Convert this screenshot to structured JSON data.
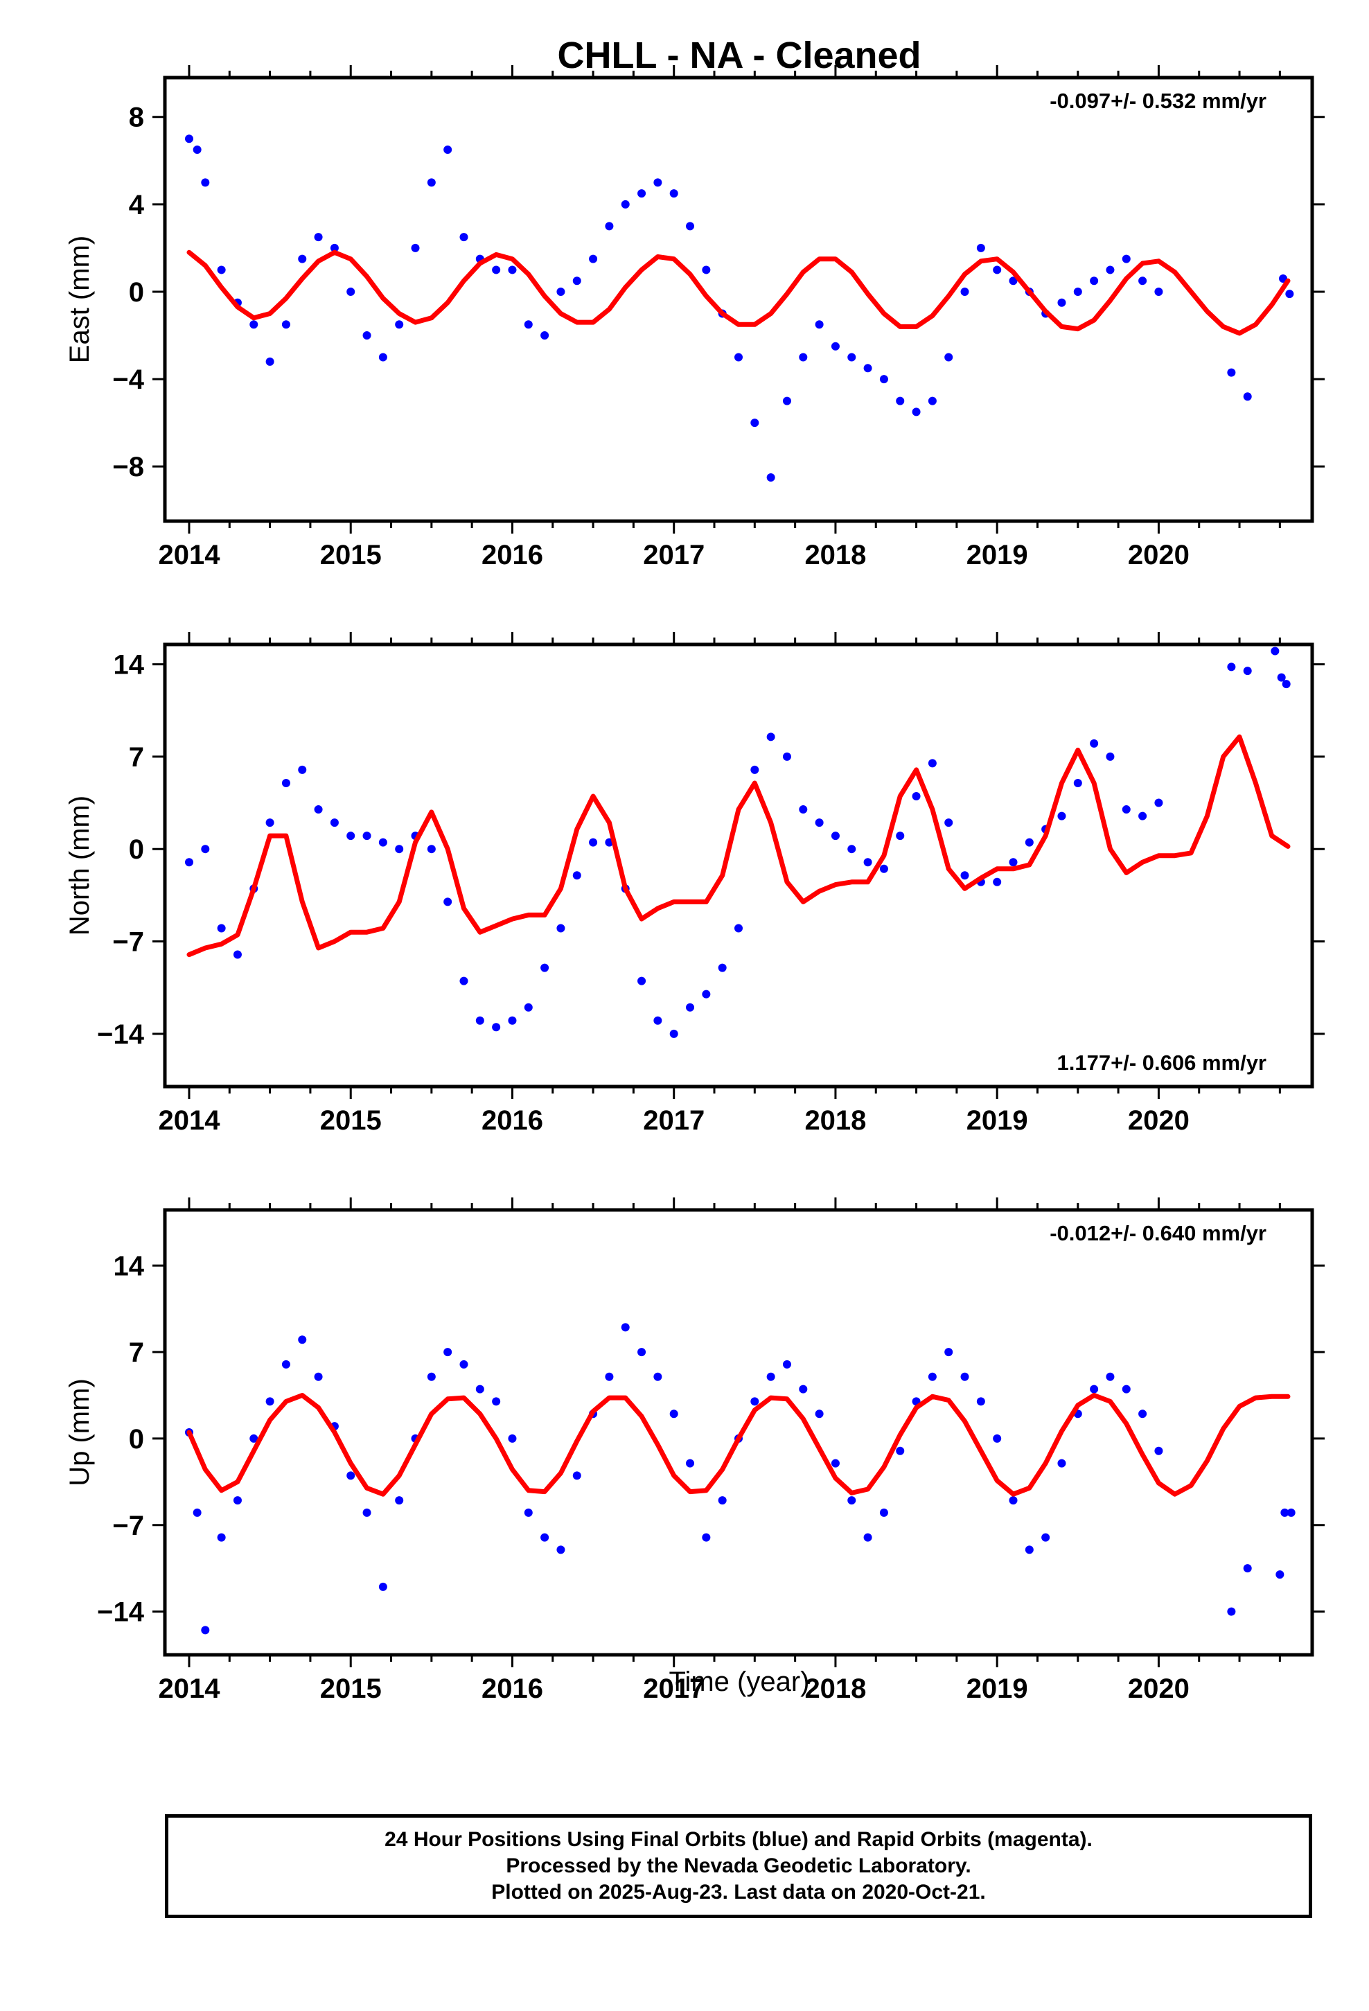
{
  "figure": {
    "title": "CHLL  - NA - Cleaned",
    "xlabel": "Time (year)"
  },
  "footer": {
    "line1": "24 Hour Positions Using Final Orbits (blue) and Rapid Orbits (magenta).",
    "line2": "Processed by the Nevada Geodetic Laboratory.",
    "line3": "Plotted on 2025-Aug-23. Last data on 2020-Oct-21."
  },
  "colors": {
    "data": "#0000ff",
    "model": "#ff0000",
    "axes": "#000000"
  },
  "chart_data": [
    {
      "type": "scatter",
      "name": "east",
      "ylabel": "East (mm)",
      "rate": "-0.097+/- 0.532 mm/yr",
      "xlim": [
        2013.85,
        2020.95
      ],
      "ylim": [
        -10.5,
        9.8
      ],
      "yticks": [
        -8,
        -4,
        0,
        4,
        8
      ],
      "xticks": [
        2014,
        2015,
        2016,
        2017,
        2018,
        2019,
        2020
      ],
      "rate_position": "top-right",
      "series": [
        {
          "name": "",
          "style": "points",
          "x": [
            2014.0,
            2014.05,
            2014.1,
            2014.2,
            2014.3,
            2014.4,
            2014.5,
            2014.6,
            2014.7,
            2014.8,
            2014.9,
            2015.0,
            2015.1,
            2015.2,
            2015.3,
            2015.4,
            2015.5,
            2015.6,
            2015.7,
            2015.8,
            2015.9,
            2016.0,
            2016.1,
            2016.2,
            2016.3,
            2016.4,
            2016.5,
            2016.6,
            2016.7,
            2016.8,
            2016.9,
            2017.0,
            2017.1,
            2017.2,
            2017.3,
            2017.4,
            2017.5,
            2017.6,
            2017.7,
            2017.8,
            2017.9,
            2018.0,
            2018.1,
            2018.2,
            2018.3,
            2018.4,
            2018.5,
            2018.6,
            2018.7,
            2018.8,
            2018.9,
            2019.0,
            2019.1,
            2019.2,
            2019.3,
            2019.4,
            2019.5,
            2019.6,
            2019.7,
            2019.8,
            2019.9,
            2020.0,
            2020.45,
            2020.55,
            2020.77,
            2020.81
          ],
          "y": [
            7.0,
            6.5,
            5.0,
            1.0,
            -0.5,
            -1.5,
            -3.2,
            -1.5,
            1.5,
            2.5,
            2.0,
            0.0,
            -2.0,
            -3.0,
            -1.5,
            2.0,
            5.0,
            6.5,
            2.5,
            1.5,
            1.0,
            1.0,
            -1.5,
            -2.0,
            0.0,
            0.5,
            1.5,
            3.0,
            4.0,
            4.5,
            5.0,
            4.5,
            3.0,
            1.0,
            -1.0,
            -3.0,
            -6.0,
            -8.5,
            -5.0,
            -3.0,
            -1.5,
            -2.5,
            -3.0,
            -3.5,
            -4.0,
            -5.0,
            -5.5,
            -5.0,
            -3.0,
            0.0,
            2.0,
            1.0,
            0.5,
            0.0,
            -1.0,
            -0.5,
            0.0,
            0.5,
            1.0,
            1.5,
            0.5,
            0.0,
            -3.7,
            -4.8,
            0.6,
            -0.1
          ]
        },
        {
          "name": "",
          "style": "line",
          "x": [
            2014.0,
            2014.1,
            2014.2,
            2014.3,
            2014.4,
            2014.5,
            2014.6,
            2014.7,
            2014.8,
            2014.9,
            2015.0,
            2015.1,
            2015.2,
            2015.3,
            2015.4,
            2015.5,
            2015.6,
            2015.7,
            2015.8,
            2015.9,
            2016.0,
            2016.1,
            2016.2,
            2016.3,
            2016.4,
            2016.5,
            2016.6,
            2016.7,
            2016.8,
            2016.9,
            2017.0,
            2017.1,
            2017.2,
            2017.3,
            2017.4,
            2017.5,
            2017.6,
            2017.7,
            2017.8,
            2017.9,
            2018.0,
            2018.1,
            2018.2,
            2018.3,
            2018.4,
            2018.5,
            2018.6,
            2018.7,
            2018.8,
            2018.9,
            2019.0,
            2019.1,
            2019.2,
            2019.3,
            2019.4,
            2019.5,
            2019.6,
            2019.7,
            2019.8,
            2019.9,
            2020.0,
            2020.1,
            2020.2,
            2020.3,
            2020.4,
            2020.5,
            2020.6,
            2020.7,
            2020.8
          ],
          "y": [
            1.8,
            1.2,
            0.2,
            -0.7,
            -1.2,
            -1.0,
            -0.3,
            0.6,
            1.4,
            1.8,
            1.5,
            0.7,
            -0.3,
            -1.0,
            -1.4,
            -1.2,
            -0.5,
            0.5,
            1.3,
            1.7,
            1.5,
            0.8,
            -0.2,
            -1.0,
            -1.4,
            -1.4,
            -0.8,
            0.2,
            1.0,
            1.6,
            1.5,
            0.8,
            -0.2,
            -1.0,
            -1.5,
            -1.5,
            -1.0,
            -0.1,
            0.9,
            1.5,
            1.5,
            0.9,
            -0.1,
            -1.0,
            -1.6,
            -1.6,
            -1.1,
            -0.2,
            0.8,
            1.4,
            1.5,
            0.9,
            0.0,
            -0.9,
            -1.6,
            -1.7,
            -1.3,
            -0.4,
            0.6,
            1.3,
            1.4,
            0.9,
            0.0,
            -0.9,
            -1.6,
            -1.9,
            -1.5,
            -0.6,
            0.5
          ]
        }
      ]
    },
    {
      "type": "scatter",
      "name": "north",
      "ylabel": "North (mm)",
      "rate": "1.177+/- 0.606 mm/yr",
      "xlim": [
        2013.85,
        2020.95
      ],
      "ylim": [
        -18.0,
        15.5
      ],
      "yticks": [
        -14,
        -7,
        0,
        7,
        14
      ],
      "xticks": [
        2014,
        2015,
        2016,
        2017,
        2018,
        2019,
        2020
      ],
      "rate_position": "bottom-right",
      "series": [
        {
          "name": "",
          "style": "points",
          "x": [
            2014.0,
            2014.1,
            2014.2,
            2014.3,
            2014.4,
            2014.5,
            2014.6,
            2014.7,
            2014.8,
            2014.9,
            2015.0,
            2015.1,
            2015.2,
            2015.3,
            2015.4,
            2015.5,
            2015.6,
            2015.7,
            2015.8,
            2015.9,
            2016.0,
            2016.1,
            2016.2,
            2016.3,
            2016.4,
            2016.5,
            2016.6,
            2016.7,
            2016.8,
            2016.9,
            2017.0,
            2017.1,
            2017.2,
            2017.3,
            2017.4,
            2017.5,
            2017.6,
            2017.7,
            2017.8,
            2017.9,
            2018.0,
            2018.1,
            2018.2,
            2018.3,
            2018.4,
            2018.5,
            2018.6,
            2018.7,
            2018.8,
            2018.9,
            2019.0,
            2019.1,
            2019.2,
            2019.3,
            2019.4,
            2019.5,
            2019.6,
            2019.7,
            2019.8,
            2019.9,
            2020.0,
            2020.45,
            2020.55,
            2020.72,
            2020.76,
            2020.79
          ],
          "y": [
            -1.0,
            0.0,
            -6.0,
            -8.0,
            -3.0,
            2.0,
            5.0,
            6.0,
            3.0,
            2.0,
            1.0,
            1.0,
            0.5,
            0.0,
            1.0,
            0.0,
            -4.0,
            -10.0,
            -13.0,
            -13.5,
            -13.0,
            -12.0,
            -9.0,
            -6.0,
            -2.0,
            0.5,
            0.5,
            -3.0,
            -10.0,
            -13.0,
            -14.0,
            -12.0,
            -11.0,
            -9.0,
            -6.0,
            6.0,
            8.5,
            7.0,
            3.0,
            2.0,
            1.0,
            0.0,
            -1.0,
            -1.5,
            1.0,
            4.0,
            6.5,
            2.0,
            -2.0,
            -2.5,
            -2.5,
            -1.0,
            0.5,
            1.5,
            2.5,
            5.0,
            8.0,
            7.0,
            3.0,
            2.5,
            3.5,
            13.8,
            13.5,
            15.0,
            13.0,
            12.5
          ]
        },
        {
          "name": "",
          "style": "line",
          "x": [
            2014.0,
            2014.1,
            2014.2,
            2014.3,
            2014.4,
            2014.5,
            2014.6,
            2014.7,
            2014.8,
            2014.9,
            2015.0,
            2015.1,
            2015.2,
            2015.3,
            2015.4,
            2015.5,
            2015.6,
            2015.7,
            2015.8,
            2015.9,
            2016.0,
            2016.1,
            2016.2,
            2016.3,
            2016.4,
            2016.5,
            2016.6,
            2016.7,
            2016.8,
            2016.9,
            2017.0,
            2017.1,
            2017.2,
            2017.3,
            2017.4,
            2017.5,
            2017.6,
            2017.7,
            2017.8,
            2017.9,
            2018.0,
            2018.1,
            2018.2,
            2018.3,
            2018.4,
            2018.5,
            2018.6,
            2018.7,
            2018.8,
            2018.9,
            2019.0,
            2019.1,
            2019.2,
            2019.3,
            2019.4,
            2019.5,
            2019.6,
            2019.7,
            2019.8,
            2019.9,
            2020.0,
            2020.1,
            2020.2,
            2020.3,
            2020.4,
            2020.5,
            2020.6,
            2020.7,
            2020.8
          ],
          "y": [
            -8.0,
            -7.5,
            -7.2,
            -6.5,
            -3.0,
            1.0,
            1.0,
            -4.0,
            -7.5,
            -7.0,
            -6.3,
            -6.3,
            -6.0,
            -4.0,
            0.5,
            2.8,
            0.0,
            -4.5,
            -6.3,
            -5.8,
            -5.3,
            -5.0,
            -5.0,
            -3.0,
            1.5,
            4.0,
            2.0,
            -3.0,
            -5.3,
            -4.5,
            -4.0,
            -4.0,
            -4.0,
            -2.0,
            3.0,
            5.0,
            2.0,
            -2.5,
            -4.0,
            -3.2,
            -2.7,
            -2.5,
            -2.5,
            -0.5,
            4.0,
            6.0,
            3.0,
            -1.5,
            -3.0,
            -2.2,
            -1.5,
            -1.5,
            -1.2,
            1.0,
            5.0,
            7.5,
            5.0,
            0.0,
            -1.8,
            -1.0,
            -0.5,
            -0.5,
            -0.3,
            2.5,
            7.0,
            8.5,
            5.0,
            1.0,
            0.2
          ]
        }
      ]
    },
    {
      "type": "scatter",
      "name": "up",
      "ylabel": "Up (mm)",
      "rate": "-0.012+/- 0.640 mm/yr",
      "xlim": [
        2013.85,
        2020.95
      ],
      "ylim": [
        -17.5,
        18.5
      ],
      "yticks": [
        -14,
        -7,
        0,
        7,
        14
      ],
      "xticks": [
        2014,
        2015,
        2016,
        2017,
        2018,
        2019,
        2020
      ],
      "rate_position": "top-right",
      "series": [
        {
          "name": "",
          "style": "points",
          "x": [
            2014.0,
            2014.05,
            2014.1,
            2014.2,
            2014.3,
            2014.4,
            2014.5,
            2014.6,
            2014.7,
            2014.8,
            2014.9,
            2015.0,
            2015.1,
            2015.2,
            2015.3,
            2015.4,
            2015.5,
            2015.6,
            2015.7,
            2015.8,
            2015.9,
            2016.0,
            2016.1,
            2016.2,
            2016.3,
            2016.4,
            2016.5,
            2016.6,
            2016.7,
            2016.8,
            2016.9,
            2017.0,
            2017.1,
            2017.2,
            2017.3,
            2017.4,
            2017.5,
            2017.6,
            2017.7,
            2017.8,
            2017.9,
            2018.0,
            2018.1,
            2018.2,
            2018.3,
            2018.4,
            2018.5,
            2018.6,
            2018.7,
            2018.8,
            2018.9,
            2019.0,
            2019.1,
            2019.2,
            2019.3,
            2019.4,
            2019.5,
            2019.6,
            2019.7,
            2019.8,
            2019.9,
            2020.0,
            2020.45,
            2020.55,
            2020.75,
            2020.78,
            2020.82
          ],
          "y": [
            0.5,
            -6.0,
            -15.5,
            -8.0,
            -5.0,
            0.0,
            3.0,
            6.0,
            8.0,
            5.0,
            1.0,
            -3.0,
            -6.0,
            -12.0,
            -5.0,
            0.0,
            5.0,
            7.0,
            6.0,
            4.0,
            3.0,
            0.0,
            -6.0,
            -8.0,
            -9.0,
            -3.0,
            2.0,
            5.0,
            9.0,
            7.0,
            5.0,
            2.0,
            -2.0,
            -8.0,
            -5.0,
            0.0,
            3.0,
            5.0,
            6.0,
            4.0,
            2.0,
            -2.0,
            -5.0,
            -8.0,
            -6.0,
            -1.0,
            3.0,
            5.0,
            7.0,
            5.0,
            3.0,
            0.0,
            -5.0,
            -9.0,
            -8.0,
            -2.0,
            2.0,
            4.0,
            5.0,
            4.0,
            2.0,
            -1.0,
            -14.0,
            -10.5,
            -11.0,
            -6.0,
            -6.0
          ]
        },
        {
          "name": "",
          "style": "line",
          "x": [
            2014.0,
            2014.1,
            2014.2,
            2014.3,
            2014.4,
            2014.5,
            2014.6,
            2014.7,
            2014.8,
            2014.9,
            2015.0,
            2015.1,
            2015.2,
            2015.3,
            2015.4,
            2015.5,
            2015.6,
            2015.7,
            2015.8,
            2015.9,
            2016.0,
            2016.1,
            2016.2,
            2016.3,
            2016.4,
            2016.5,
            2016.6,
            2016.7,
            2016.8,
            2016.9,
            2017.0,
            2017.1,
            2017.2,
            2017.3,
            2017.4,
            2017.5,
            2017.6,
            2017.7,
            2017.8,
            2017.9,
            2018.0,
            2018.1,
            2018.2,
            2018.3,
            2018.4,
            2018.5,
            2018.6,
            2018.7,
            2018.8,
            2018.9,
            2019.0,
            2019.1,
            2019.2,
            2019.3,
            2019.4,
            2019.5,
            2019.6,
            2019.7,
            2019.8,
            2019.9,
            2020.0,
            2020.1,
            2020.2,
            2020.3,
            2020.4,
            2020.5,
            2020.6,
            2020.7,
            2020.8
          ],
          "y": [
            0.5,
            -2.5,
            -4.2,
            -3.5,
            -1.0,
            1.5,
            3.0,
            3.5,
            2.5,
            0.5,
            -2.0,
            -4.0,
            -4.5,
            -3.0,
            -0.5,
            2.0,
            3.2,
            3.3,
            2.0,
            0.0,
            -2.5,
            -4.2,
            -4.3,
            -2.8,
            -0.2,
            2.2,
            3.3,
            3.3,
            1.8,
            -0.5,
            -3.0,
            -4.3,
            -4.2,
            -2.5,
            0.0,
            2.3,
            3.3,
            3.2,
            1.6,
            -0.8,
            -3.2,
            -4.4,
            -4.1,
            -2.3,
            0.3,
            2.5,
            3.4,
            3.1,
            1.4,
            -1.0,
            -3.4,
            -4.5,
            -4.0,
            -2.0,
            0.6,
            2.7,
            3.5,
            3.0,
            1.2,
            -1.3,
            -3.6,
            -4.5,
            -3.8,
            -1.8,
            0.8,
            2.6,
            3.3,
            3.4,
            3.4
          ]
        }
      ]
    }
  ]
}
